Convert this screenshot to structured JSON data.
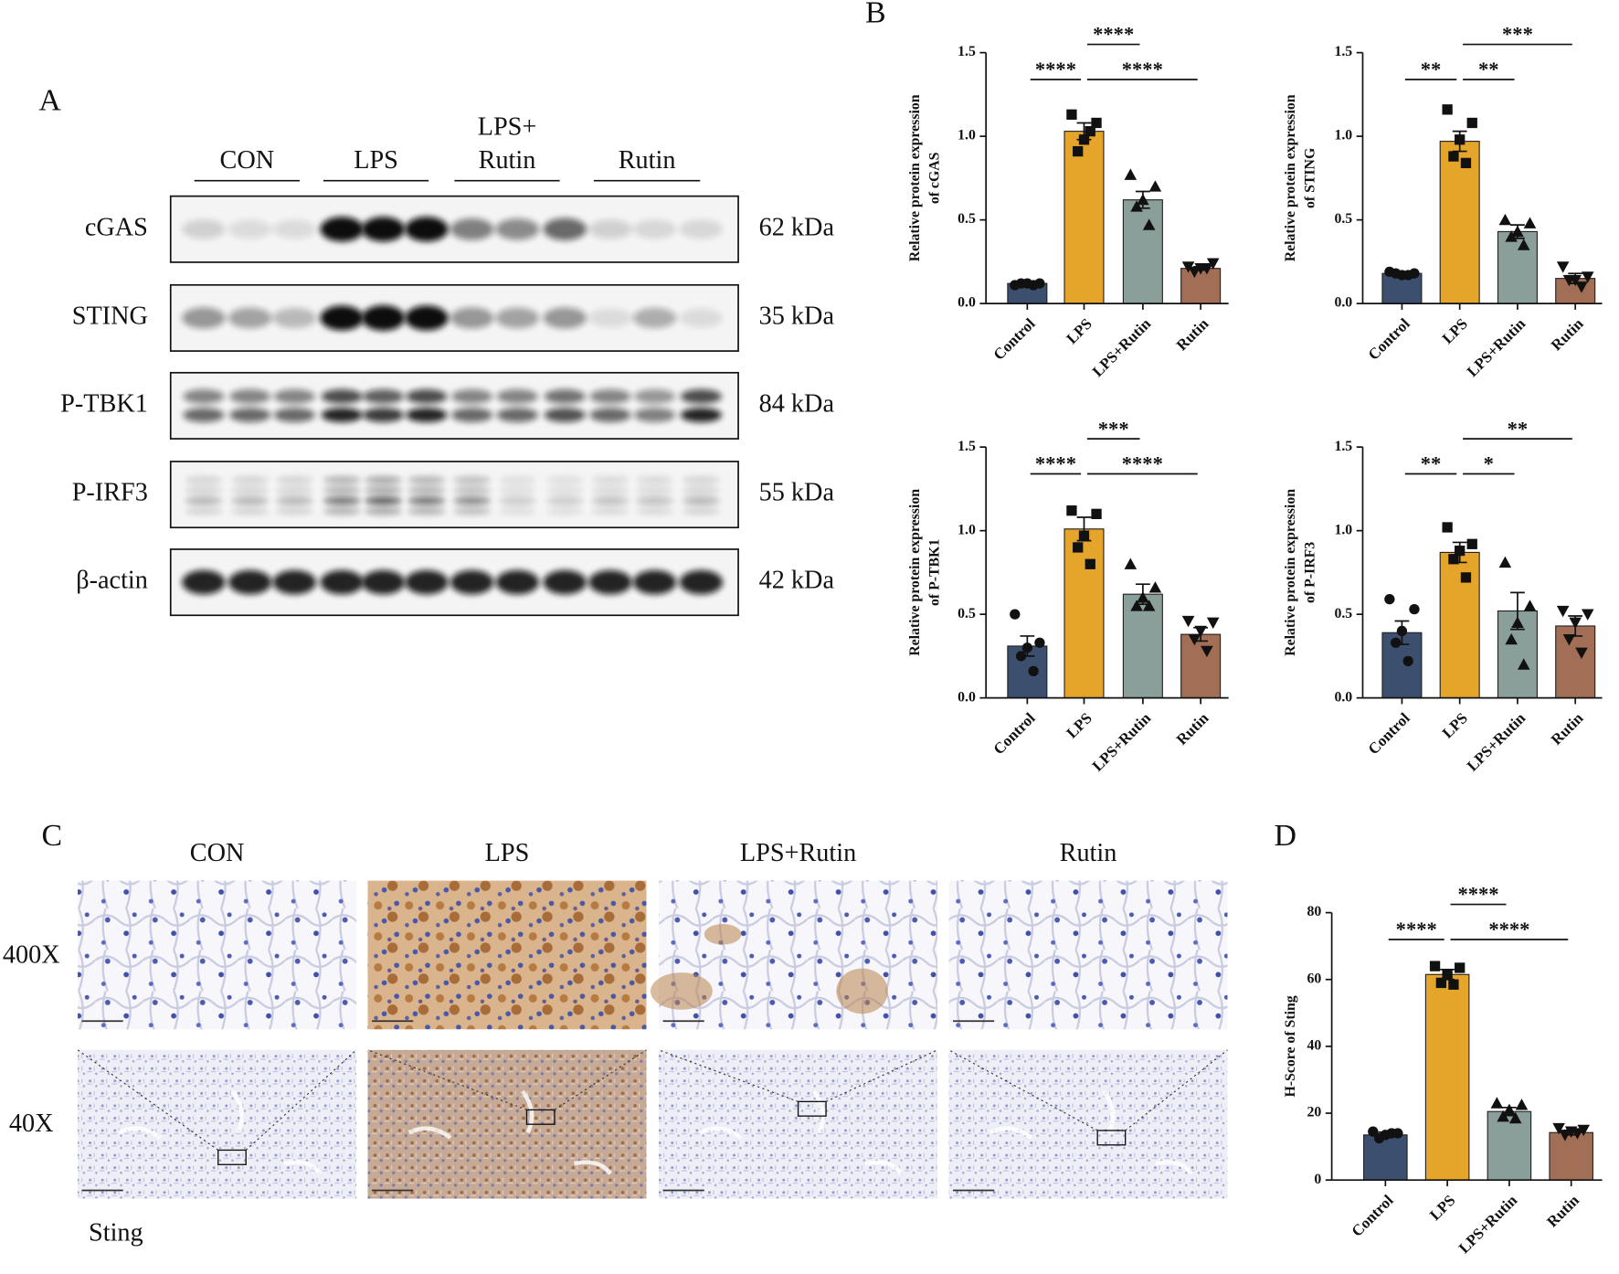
{
  "panel_labels": [
    "A",
    "B",
    "C",
    "D"
  ],
  "western_blot": {
    "groups": [
      [
        "CON"
      ],
      [
        "LPS"
      ],
      [
        "LPS+",
        "Rutin"
      ],
      [
        "Rutin"
      ]
    ],
    "rows": [
      {
        "protein": "cGAS",
        "size": "62 kDa"
      },
      {
        "protein": "STING",
        "size": "35 kDa"
      },
      {
        "protein": "P-TBK1",
        "size": "84 kDa"
      },
      {
        "protein": "P-IRF3",
        "size": "55 kDa"
      },
      {
        "protein": "β-actin",
        "size": "42 kDa"
      }
    ]
  },
  "ihc": {
    "columns": [
      "CON",
      "LPS",
      "LPS+Rutin",
      "Rutin"
    ],
    "magnifications": [
      "400X",
      "40X"
    ],
    "stain": "Sting"
  },
  "chart_data": [
    {
      "type": "bar",
      "ylabel": [
        "Relative protein expression",
        "of cGAS"
      ],
      "categories": [
        "Control",
        "LPS",
        "LPS+Rutin",
        "Rutin"
      ],
      "colors": [
        "#3d4f6e",
        "#e5a52a",
        "#8a9e9a",
        "#a26e55"
      ],
      "markers": [
        "circle",
        "square",
        "triangle",
        "triangle-down"
      ],
      "values": [
        0.12,
        1.03,
        0.62,
        0.21
      ],
      "errors": [
        0.01,
        0.05,
        0.05,
        0.01
      ],
      "points": [
        [
          0.11,
          0.12,
          0.12,
          0.12,
          0.11
        ],
        [
          1.13,
          1.08,
          0.98,
          0.91,
          1.03
        ],
        [
          0.77,
          0.7,
          0.62,
          0.58,
          0.47
        ],
        [
          0.22,
          0.24,
          0.21,
          0.19,
          0.21
        ]
      ],
      "ylim": [
        0,
        1.5
      ],
      "yticks": [
        {
          "value": 0,
          "label": "0.0"
        },
        {
          "value": 0.5,
          "label": "0.5"
        },
        {
          "value": 1,
          "label": "1.0"
        },
        {
          "value": 1.5,
          "label": "1.5"
        }
      ],
      "comparisons": [
        {
          "groups": [
            "Control",
            "LPS"
          ],
          "label": "****"
        },
        {
          "groups": [
            "LPS",
            "Rutin"
          ],
          "label": "****"
        },
        {
          "groups": [
            "LPS",
            "LPS+Rutin"
          ],
          "label": "****"
        }
      ]
    },
    {
      "type": "bar",
      "ylabel": [
        "Relative protein expression",
        "of STING"
      ],
      "categories": [
        "Control",
        "LPS",
        "LPS+Rutin",
        "Rutin"
      ],
      "colors": [
        "#3d4f6e",
        "#e5a52a",
        "#8a9e9a",
        "#a26e55"
      ],
      "markers": [
        "circle",
        "square",
        "triangle",
        "triangle-down"
      ],
      "values": [
        0.18,
        0.97,
        0.43,
        0.15
      ],
      "errors": [
        0.01,
        0.06,
        0.04,
        0.03
      ],
      "points": [
        [
          0.19,
          0.18,
          0.17,
          0.18,
          0.17
        ],
        [
          1.16,
          1.08,
          0.98,
          0.88,
          0.84
        ],
        [
          0.5,
          0.48,
          0.43,
          0.4,
          0.35
        ],
        [
          0.22,
          0.16,
          0.14,
          0.14,
          0.1
        ]
      ],
      "ylim": [
        0,
        1.5
      ],
      "yticks": [
        {
          "value": 0,
          "label": "0.0"
        },
        {
          "value": 0.5,
          "label": "0.5"
        },
        {
          "value": 1,
          "label": "1.0"
        },
        {
          "value": 1.5,
          "label": "1.5"
        }
      ],
      "comparisons": [
        {
          "groups": [
            "Control",
            "LPS"
          ],
          "label": "**"
        },
        {
          "groups": [
            "LPS",
            "LPS+Rutin"
          ],
          "label": "**"
        },
        {
          "groups": [
            "LPS",
            "Rutin"
          ],
          "label": "***"
        }
      ]
    },
    {
      "type": "bar",
      "ylabel": [
        "Relative protein expression",
        "of P-TBK1"
      ],
      "categories": [
        "Control",
        "LPS",
        "LPS+Rutin",
        "Rutin"
      ],
      "colors": [
        "#3d4f6e",
        "#e5a52a",
        "#8a9e9a",
        "#a26e55"
      ],
      "markers": [
        "circle",
        "square",
        "triangle",
        "triangle-down"
      ],
      "values": [
        0.31,
        1.01,
        0.62,
        0.38
      ],
      "errors": [
        0.06,
        0.07,
        0.06,
        0.04
      ],
      "points": [
        [
          0.5,
          0.33,
          0.3,
          0.25,
          0.16
        ],
        [
          1.12,
          1.1,
          0.97,
          0.9,
          0.8
        ],
        [
          0.8,
          0.66,
          0.6,
          0.55,
          0.55
        ],
        [
          0.46,
          0.45,
          0.4,
          0.35,
          0.28
        ]
      ],
      "ylim": [
        0,
        1.5
      ],
      "yticks": [
        {
          "value": 0,
          "label": "0.0"
        },
        {
          "value": 0.5,
          "label": "0.5"
        },
        {
          "value": 1,
          "label": "1.0"
        },
        {
          "value": 1.5,
          "label": "1.5"
        }
      ],
      "comparisons": [
        {
          "groups": [
            "Control",
            "LPS"
          ],
          "label": "****"
        },
        {
          "groups": [
            "LPS",
            "Rutin"
          ],
          "label": "****"
        },
        {
          "groups": [
            "LPS",
            "LPS+Rutin"
          ],
          "label": "***"
        }
      ]
    },
    {
      "type": "bar",
      "ylabel": [
        "Relative protein expression",
        "of P-IRF3"
      ],
      "categories": [
        "Control",
        "LPS",
        "LPS+Rutin",
        "Rutin"
      ],
      "colors": [
        "#3d4f6e",
        "#e5a52a",
        "#8a9e9a",
        "#a26e55"
      ],
      "markers": [
        "circle",
        "square",
        "triangle",
        "triangle-down"
      ],
      "values": [
        0.39,
        0.87,
        0.52,
        0.43
      ],
      "errors": [
        0.07,
        0.06,
        0.11,
        0.06
      ],
      "points": [
        [
          0.59,
          0.53,
          0.4,
          0.33,
          0.22
        ],
        [
          1.02,
          0.92,
          0.88,
          0.83,
          0.72
        ],
        [
          0.81,
          0.55,
          0.45,
          0.35,
          0.2
        ],
        [
          0.52,
          0.5,
          0.45,
          0.35,
          0.27
        ]
      ],
      "ylim": [
        0,
        1.5
      ],
      "yticks": [
        {
          "value": 0,
          "label": "0.0"
        },
        {
          "value": 0.5,
          "label": "0.5"
        },
        {
          "value": 1,
          "label": "1.0"
        },
        {
          "value": 1.5,
          "label": "1.5"
        }
      ],
      "comparisons": [
        {
          "groups": [
            "Control",
            "LPS"
          ],
          "label": "**"
        },
        {
          "groups": [
            "LPS",
            "LPS+Rutin"
          ],
          "label": "*"
        },
        {
          "groups": [
            "LPS",
            "Rutin"
          ],
          "label": "**"
        }
      ]
    },
    {
      "type": "bar",
      "ylabel": [
        "H-Score of Sting"
      ],
      "categories": [
        "Control",
        "LPS",
        "LPS+Rutin",
        "Rutin"
      ],
      "colors": [
        "#3d4f6e",
        "#e5a52a",
        "#8a9e9a",
        "#a26e55"
      ],
      "markers": [
        "circle",
        "square",
        "triangle",
        "triangle-down"
      ],
      "values": [
        13.5,
        61.5,
        20.5,
        14.2
      ],
      "errors": [
        0.8,
        1.5,
        1.2,
        0.7
      ],
      "points": [
        [
          14.5,
          14,
          13.5,
          12.5,
          14
        ],
        [
          64,
          63.5,
          61.5,
          59,
          58.5
        ],
        [
          23,
          22.5,
          21,
          19,
          18.5
        ],
        [
          15.5,
          15,
          14.5,
          13.5,
          14
        ]
      ],
      "ylim": [
        0,
        80
      ],
      "yticks": [
        0,
        20,
        40,
        60,
        80
      ],
      "comparisons": [
        {
          "groups": [
            "Control",
            "LPS"
          ],
          "label": "****"
        },
        {
          "groups": [
            "LPS",
            "Rutin"
          ],
          "label": "****"
        },
        {
          "groups": [
            "LPS",
            "LPS+Rutin"
          ],
          "label": "****"
        }
      ]
    }
  ]
}
